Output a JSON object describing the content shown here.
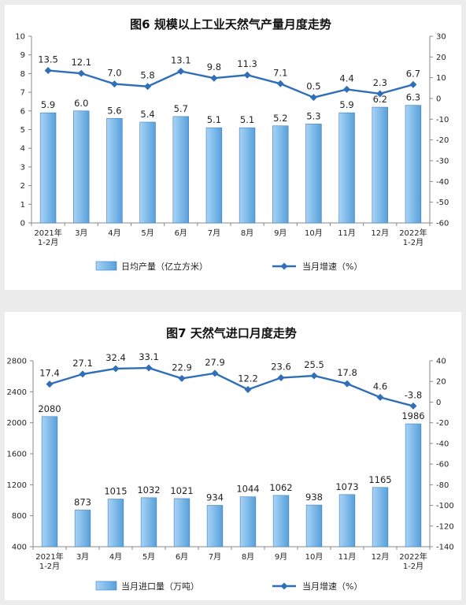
{
  "chart_data": [
    {
      "type": "bar",
      "title": "图6  规模以上工业天然气产量月度走势",
      "categories": [
        "2021年\n1-2月",
        "3月",
        "4月",
        "5月",
        "6月",
        "7月",
        "8月",
        "9月",
        "10月",
        "11月",
        "12月",
        "2022年\n1-2月"
      ],
      "series": [
        {
          "name": "日均产量（亿立方米）",
          "type": "bar",
          "axis": "left",
          "color": "#7ab8e8",
          "values": [
            5.9,
            6.0,
            5.6,
            5.4,
            5.7,
            5.1,
            5.1,
            5.2,
            5.3,
            5.9,
            6.2,
            6.3
          ],
          "labels": [
            "5.9",
            "6.0",
            "5.6",
            "5.4",
            "5.7",
            "5.1",
            "5.1",
            "5.2",
            "5.3",
            "5.9",
            "6.2",
            "6.3"
          ]
        },
        {
          "name": "当月增速（%）",
          "type": "line",
          "axis": "right",
          "color": "#2f6fb8",
          "values": [
            13.5,
            12.1,
            7.0,
            5.8,
            13.1,
            9.8,
            11.3,
            7.1,
            0.5,
            4.4,
            2.3,
            6.7
          ],
          "labels": [
            "13.5",
            "12.1",
            "7.0",
            "5.8",
            "13.1",
            "9.8",
            "11.3",
            "7.1",
            "0.5",
            "4.4",
            "2.3",
            "6.7"
          ]
        }
      ],
      "ylim_left": [
        0,
        10
      ],
      "yticks_left": [
        "0",
        "1",
        "2",
        "3",
        "4",
        "5",
        "6",
        "7",
        "8",
        "9",
        "10"
      ],
      "ylim_right": [
        -60,
        30
      ],
      "yticks_right": [
        "-60",
        "-50",
        "-40",
        "-30",
        "-20",
        "-10",
        "0",
        "10",
        "20",
        "30"
      ],
      "legend": "bottom",
      "grid": false
    },
    {
      "type": "bar",
      "title": "图7  天然气进口月度走势",
      "categories": [
        "2021年\n1-2月",
        "3月",
        "4月",
        "5月",
        "6月",
        "7月",
        "8月",
        "9月",
        "10月",
        "11月",
        "12月",
        "2022年\n1-2月"
      ],
      "series": [
        {
          "name": "当月进口量（万吨）",
          "type": "bar",
          "axis": "left",
          "color": "#7ab8e8",
          "values": [
            2080,
            873,
            1015,
            1032,
            1021,
            934,
            1044,
            1062,
            938,
            1073,
            1165,
            1986
          ],
          "labels": [
            "2080",
            "873",
            "1015",
            "1032",
            "1021",
            "934",
            "1044",
            "1062",
            "938",
            "1073",
            "1165",
            "1986"
          ]
        },
        {
          "name": "当月增速（%）",
          "type": "line",
          "axis": "right",
          "color": "#2f6fb8",
          "values": [
            17.4,
            27.1,
            32.4,
            33.1,
            22.9,
            27.9,
            12.2,
            23.6,
            25.5,
            17.8,
            4.6,
            -3.8
          ],
          "labels": [
            "17.4",
            "27.1",
            "32.4",
            "33.1",
            "22.9",
            "27.9",
            "12.2",
            "23.6",
            "25.5",
            "17.8",
            "4.6",
            "-3.8"
          ]
        }
      ],
      "ylim_left": [
        400,
        2800
      ],
      "yticks_left": [
        "400",
        "800",
        "1200",
        "1600",
        "2000",
        "2400",
        "2800"
      ],
      "ylim_right": [
        -140,
        40
      ],
      "yticks_right": [
        "-140",
        "-120",
        "-100",
        "-80",
        "-60",
        "-40",
        "-20",
        "0",
        "20",
        "40"
      ],
      "legend": "bottom",
      "grid": false
    }
  ]
}
